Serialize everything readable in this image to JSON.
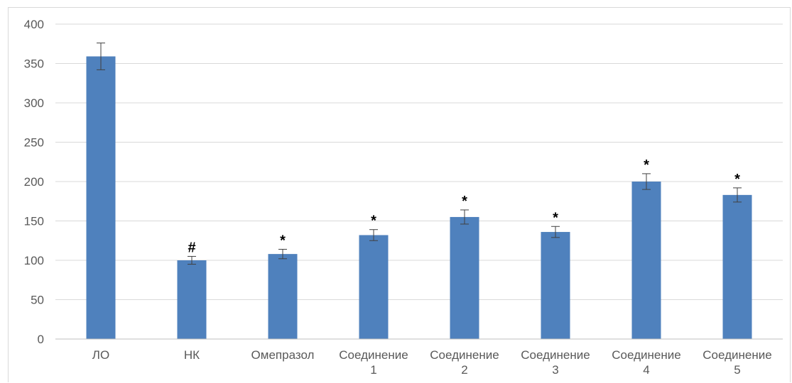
{
  "chart_data": {
    "type": "bar",
    "categories": [
      "ЛО",
      "НК",
      "Омепразол",
      "Соединение 1",
      "Соединение 2",
      "Соединение 3",
      "Соединение 4",
      "Соединение 5"
    ],
    "category_lines": [
      [
        "ЛО"
      ],
      [
        "НК"
      ],
      [
        "Омепразол"
      ],
      [
        "Соединение",
        "1"
      ],
      [
        "Соединение",
        "2"
      ],
      [
        "Соединение",
        "3"
      ],
      [
        "Соединение",
        "4"
      ],
      [
        "Соединение",
        "5"
      ]
    ],
    "values": [
      359,
      100,
      108,
      132,
      155,
      136,
      200,
      183
    ],
    "error": [
      17,
      5,
      6,
      7,
      9,
      7,
      10,
      9
    ],
    "markers": [
      "",
      "#",
      "*",
      "*",
      "*",
      "*",
      "*",
      "*"
    ],
    "ylim": [
      0,
      400
    ],
    "yticks": [
      0,
      50,
      100,
      150,
      200,
      250,
      300,
      350,
      400
    ],
    "grid": true,
    "title": "",
    "xlabel": "",
    "ylabel": "",
    "bar_color": "#4f81bd",
    "grid_color": "#d9d9d9",
    "axis_color": "#bfbfbf",
    "error_bar_color": "#404040"
  }
}
